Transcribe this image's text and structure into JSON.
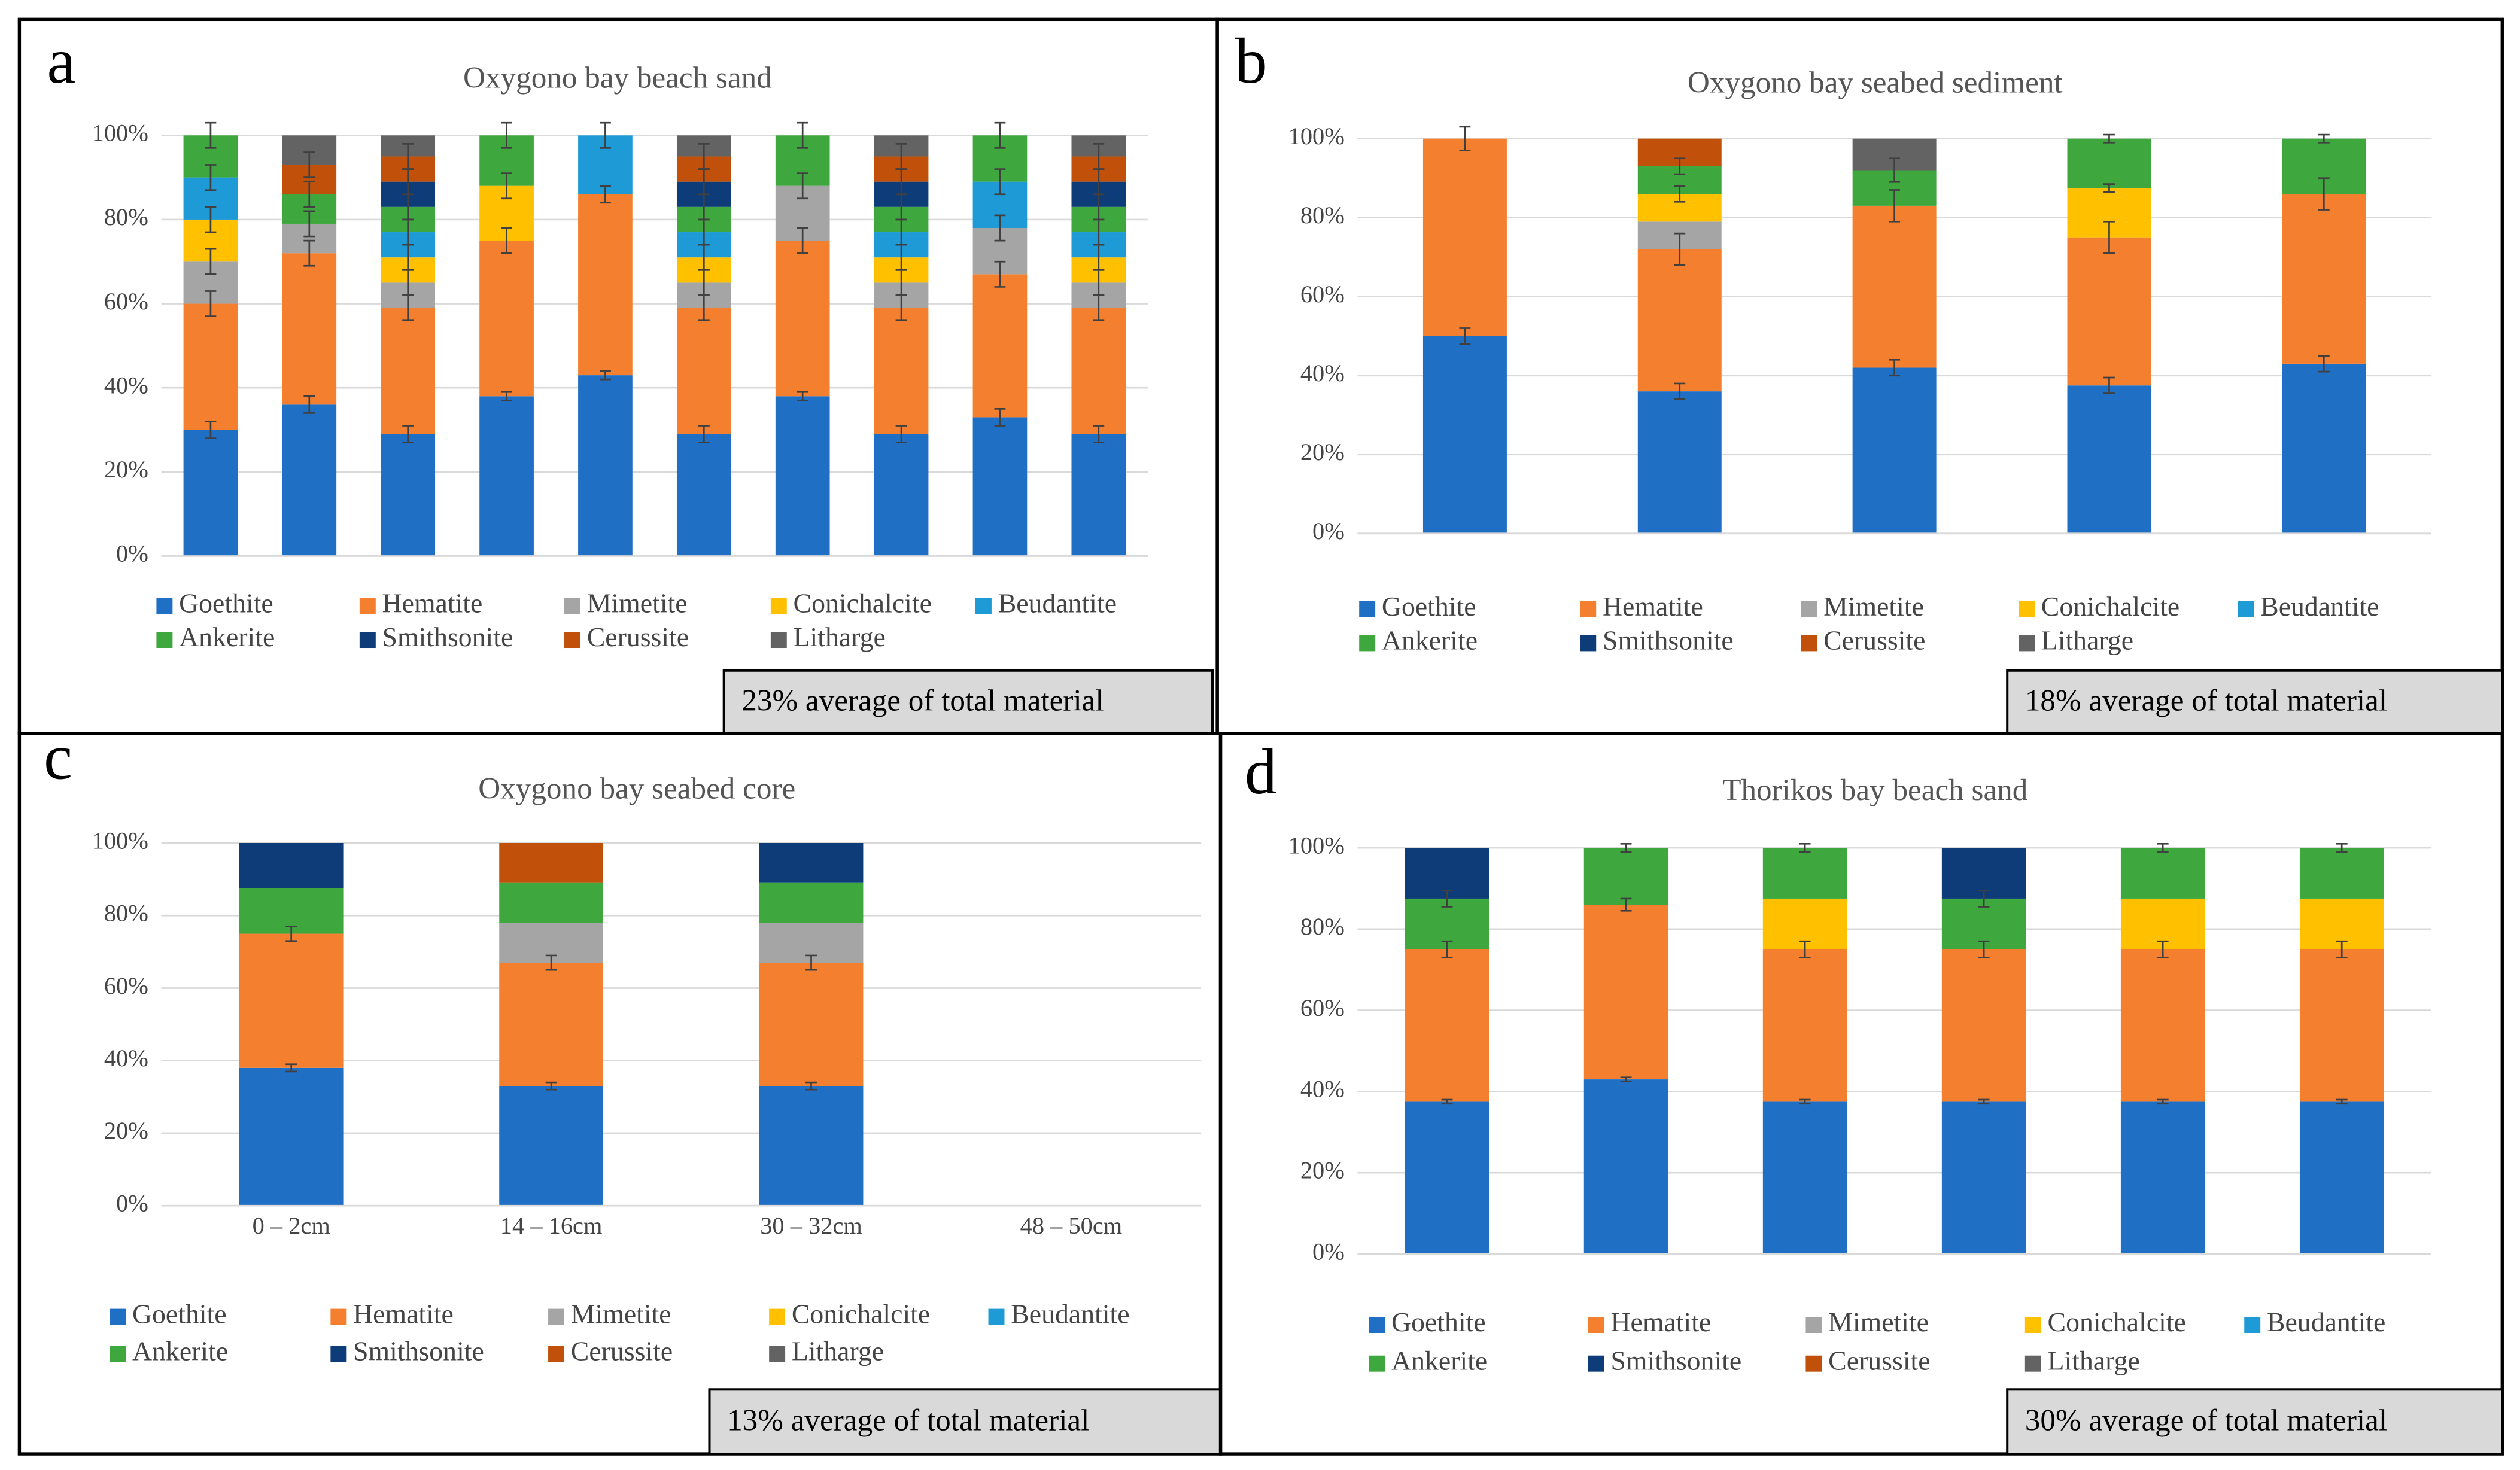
{
  "chart_data": [
    {
      "type": "bar",
      "stacked": true,
      "panel_label": "a",
      "title": "Oxygono bay beach sand",
      "note": "23%  average of total material",
      "categories": [
        null,
        null,
        null,
        null,
        null,
        null,
        null,
        null,
        null,
        null
      ],
      "ylim": [
        0,
        100
      ],
      "yticks": [
        {
          "value": 0,
          "label": "0%"
        },
        {
          "value": 20,
          "label": "20%"
        },
        {
          "value": 40,
          "label": "40%"
        },
        {
          "value": 60,
          "label": "60%"
        },
        {
          "value": 80,
          "label": "80%"
        },
        {
          "value": 100,
          "label": "100%"
        }
      ],
      "grid": true,
      "series": [
        {
          "name": "Goethite",
          "color": "#1f6fc5",
          "values": [
            30,
            36,
            29,
            38,
            43,
            29,
            38,
            29,
            33,
            29
          ],
          "errors": [
            2,
            2,
            2,
            1,
            1,
            2,
            1,
            2,
            2,
            2
          ]
        },
        {
          "name": "Hematite",
          "color": "#f47f2f",
          "values": [
            30,
            36,
            30,
            37,
            43,
            30,
            37,
            30,
            34,
            30
          ],
          "errors": [
            3,
            3,
            3,
            3,
            2,
            3,
            3,
            3,
            3,
            3
          ]
        },
        {
          "name": "Mimetite",
          "color": "#a5a5a5",
          "values": [
            10,
            7,
            6,
            null,
            null,
            6,
            13,
            6,
            11,
            6
          ],
          "errors": [
            3,
            3,
            3,
            null,
            null,
            3,
            3,
            3,
            3,
            3
          ]
        },
        {
          "name": "Conichalcite",
          "color": "#ffc000",
          "values": [
            10,
            null,
            6,
            13,
            null,
            6,
            null,
            6,
            null,
            6
          ],
          "errors": [
            3,
            null,
            3,
            3,
            null,
            3,
            null,
            3,
            null,
            3
          ]
        },
        {
          "name": "Beudantite",
          "color": "#1e9bd7",
          "values": [
            10,
            null,
            6,
            null,
            14,
            6,
            null,
            6,
            11,
            6
          ],
          "errors": [
            3,
            null,
            3,
            null,
            3,
            3,
            null,
            3,
            3,
            3
          ]
        },
        {
          "name": "Ankerite",
          "color": "#3ea73e",
          "values": [
            10,
            7,
            6,
            12,
            null,
            6,
            12,
            6,
            11,
            6
          ],
          "errors": [
            3,
            3,
            3,
            3,
            null,
            3,
            3,
            3,
            3,
            3
          ]
        },
        {
          "name": "Smithsonite",
          "color": "#0d3c78",
          "values": [
            null,
            null,
            6,
            null,
            null,
            6,
            null,
            6,
            null,
            6
          ],
          "errors": [
            null,
            null,
            3,
            null,
            null,
            3,
            null,
            3,
            null,
            3
          ]
        },
        {
          "name": "Cerussite",
          "color": "#c0500a",
          "values": [
            null,
            7,
            6,
            null,
            null,
            6,
            null,
            6,
            null,
            6
          ],
          "errors": [
            null,
            3,
            3,
            null,
            null,
            3,
            null,
            3,
            null,
            3
          ]
        },
        {
          "name": "Litharge",
          "color": "#636363",
          "values": [
            null,
            7,
            5,
            null,
            null,
            5,
            null,
            5,
            null,
            5
          ]
        }
      ]
    },
    {
      "type": "bar",
      "stacked": true,
      "panel_label": "b",
      "title": "Oxygono bay seabed sediment",
      "note": "18%  average of total material",
      "categories": [
        null,
        null,
        null,
        null,
        null
      ],
      "ylim": [
        0,
        100
      ],
      "yticks": [
        {
          "value": 0,
          "label": "0%"
        },
        {
          "value": 20,
          "label": "20%"
        },
        {
          "value": 40,
          "label": "40%"
        },
        {
          "value": 60,
          "label": "60%"
        },
        {
          "value": 80,
          "label": "80%"
        },
        {
          "value": 100,
          "label": "100%"
        }
      ],
      "grid": true,
      "series": [
        {
          "name": "Goethite",
          "color": "#1f6fc5",
          "values": [
            50,
            36,
            42,
            37.5,
            43
          ],
          "errors": [
            2,
            2,
            2,
            2,
            2
          ]
        },
        {
          "name": "Hematite",
          "color": "#f47f2f",
          "values": [
            50,
            36,
            41,
            37.5,
            43
          ],
          "errors": [
            3,
            4,
            4,
            4,
            4
          ]
        },
        {
          "name": "Mimetite",
          "color": "#a5a5a5",
          "values": [
            null,
            7,
            null,
            null,
            null
          ]
        },
        {
          "name": "Conichalcite",
          "color": "#ffc000",
          "values": [
            null,
            7,
            null,
            12.5,
            null
          ],
          "errors": [
            null,
            2,
            null,
            1,
            null
          ]
        },
        {
          "name": "Beudantite",
          "color": "#1e9bd7",
          "values": [
            null,
            null,
            null,
            null,
            null
          ]
        },
        {
          "name": "Ankerite",
          "color": "#3ea73e",
          "values": [
            null,
            7,
            9,
            12.5,
            14
          ],
          "errors": [
            null,
            2,
            3,
            1,
            1
          ]
        },
        {
          "name": "Smithsonite",
          "color": "#0d3c78",
          "values": [
            null,
            null,
            null,
            null,
            null
          ]
        },
        {
          "name": "Cerussite",
          "color": "#c0500a",
          "values": [
            null,
            7,
            null,
            null,
            null
          ]
        },
        {
          "name": "Litharge",
          "color": "#636363",
          "values": [
            null,
            null,
            8,
            null,
            null
          ]
        }
      ]
    },
    {
      "type": "bar",
      "stacked": true,
      "panel_label": "c",
      "title": "Oxygono bay seabed core",
      "note": "13%  average of total material",
      "categories": [
        "0 – 2cm",
        "14 – 16cm",
        "30 – 32cm",
        "48 – 50cm"
      ],
      "ylim": [
        0,
        100
      ],
      "yticks": [
        {
          "value": 0,
          "label": "0%"
        },
        {
          "value": 20,
          "label": "20%"
        },
        {
          "value": 40,
          "label": "40%"
        },
        {
          "value": 60,
          "label": "60%"
        },
        {
          "value": 80,
          "label": "80%"
        },
        {
          "value": 100,
          "label": "100%"
        }
      ],
      "grid": true,
      "series": [
        {
          "name": "Goethite",
          "color": "#1f6fc5",
          "values": [
            38,
            33,
            33,
            null
          ],
          "errors": [
            1,
            1,
            1,
            null
          ]
        },
        {
          "name": "Hematite",
          "color": "#f47f2f",
          "values": [
            37,
            34,
            34,
            null
          ],
          "errors": [
            2,
            2,
            2,
            null
          ]
        },
        {
          "name": "Mimetite",
          "color": "#a5a5a5",
          "values": [
            null,
            11,
            11,
            null
          ]
        },
        {
          "name": "Conichalcite",
          "color": "#ffc000",
          "values": [
            null,
            null,
            null,
            null
          ]
        },
        {
          "name": "Beudantite",
          "color": "#1e9bd7",
          "values": [
            null,
            null,
            null,
            null
          ]
        },
        {
          "name": "Ankerite",
          "color": "#3ea73e",
          "values": [
            12.5,
            11,
            11,
            null
          ]
        },
        {
          "name": "Smithsonite",
          "color": "#0d3c78",
          "values": [
            12.5,
            null,
            11,
            null
          ]
        },
        {
          "name": "Cerussite",
          "color": "#c0500a",
          "values": [
            null,
            11,
            null,
            null
          ]
        },
        {
          "name": "Litharge",
          "color": "#636363",
          "values": [
            null,
            null,
            null,
            null
          ]
        }
      ]
    },
    {
      "type": "bar",
      "stacked": true,
      "panel_label": "d",
      "title": "Thorikos bay beach sand",
      "note": "30%  average of total material",
      "categories": [
        null,
        null,
        null,
        null,
        null,
        null
      ],
      "ylim": [
        0,
        100
      ],
      "yticks": [
        {
          "value": 0,
          "label": "0%"
        },
        {
          "value": 20,
          "label": "20%"
        },
        {
          "value": 40,
          "label": "40%"
        },
        {
          "value": 60,
          "label": "60%"
        },
        {
          "value": 80,
          "label": "80%"
        },
        {
          "value": 100,
          "label": "100%"
        }
      ],
      "grid": true,
      "series": [
        {
          "name": "Goethite",
          "color": "#1f6fc5",
          "values": [
            37.5,
            43,
            37.5,
            37.5,
            37.5,
            37.5
          ],
          "errors": [
            0.5,
            0.5,
            0.5,
            0.5,
            0.5,
            0.5
          ]
        },
        {
          "name": "Hematite",
          "color": "#f47f2f",
          "values": [
            37.5,
            43,
            37.5,
            37.5,
            37.5,
            37.5
          ],
          "errors": [
            2,
            1.5,
            2,
            2,
            2,
            2
          ]
        },
        {
          "name": "Mimetite",
          "color": "#a5a5a5",
          "values": [
            null,
            null,
            null,
            null,
            null,
            null
          ]
        },
        {
          "name": "Conichalcite",
          "color": "#ffc000",
          "values": [
            null,
            null,
            12.5,
            null,
            12.5,
            12.5
          ]
        },
        {
          "name": "Beudantite",
          "color": "#1e9bd7",
          "values": [
            null,
            null,
            null,
            null,
            null,
            null
          ]
        },
        {
          "name": "Ankerite",
          "color": "#3ea73e",
          "values": [
            12.5,
            14,
            12.5,
            12.5,
            12.5,
            12.5
          ],
          "errors": [
            2,
            1,
            1,
            2,
            1,
            1
          ]
        },
        {
          "name": "Smithsonite",
          "color": "#0d3c78",
          "values": [
            12.5,
            null,
            null,
            12.5,
            null,
            null
          ]
        },
        {
          "name": "Cerussite",
          "color": "#c0500a",
          "values": [
            null,
            null,
            null,
            null,
            null,
            null
          ]
        },
        {
          "name": "Litharge",
          "color": "#636363",
          "values": [
            null,
            null,
            null,
            null,
            null,
            null
          ]
        }
      ]
    }
  ]
}
